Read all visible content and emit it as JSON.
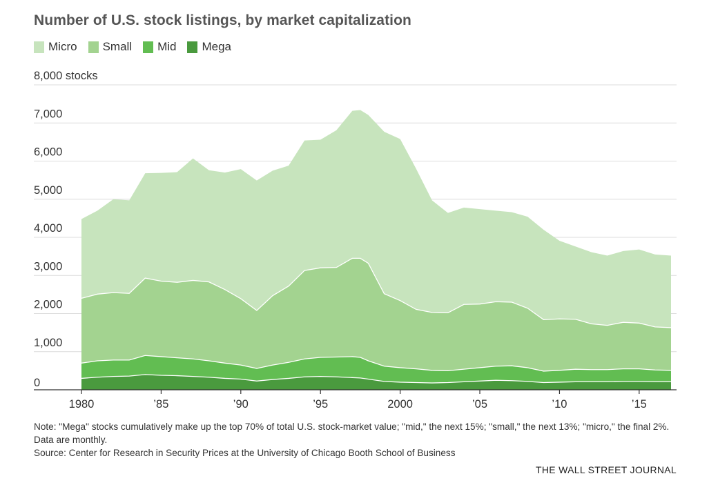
{
  "title": "Number of U.S. stock listings, by market capitalization",
  "note": "Note: \"Mega\" stocks cumulatively make up the top 70% of total U.S. stock-market value; \"mid,\" the next 15%; \"small,\" the next 13%; \"micro,\" the final 2%. Data are monthly.",
  "source": "Source: Center for Research in Security Prices at the University of Chicago Booth School of Business",
  "publisher": "THE WALL STREET JOURNAL",
  "chart_data": {
    "type": "area",
    "stacked": true,
    "title": "Number of U.S. stock listings, by market capitalization",
    "ylabel": "",
    "y_unit_label": "stocks",
    "ylim": [
      0,
      8000
    ],
    "xlim": [
      1980,
      2017
    ],
    "y_ticks": [
      0,
      1000,
      2000,
      3000,
      4000,
      5000,
      6000,
      7000,
      8000
    ],
    "y_tick_labels": [
      "0",
      "1,000",
      "2,000",
      "3,000",
      "4,000",
      "5,000",
      "6,000",
      "7,000",
      "8,000 stocks"
    ],
    "x_ticks": [
      1980,
      1985,
      1990,
      1995,
      2000,
      2005,
      2010,
      2015
    ],
    "x_tick_labels": [
      "1980",
      "’85",
      "’90",
      "’95",
      "2000",
      "’05",
      "’10",
      "’15"
    ],
    "grid": true,
    "legend_position": "top-left",
    "x": [
      1980,
      1981,
      1982,
      1983,
      1984,
      1985,
      1986,
      1987,
      1988,
      1989,
      1990,
      1991,
      1992,
      1993,
      1994,
      1995,
      1996,
      1997,
      1997.5,
      1998,
      1999,
      2000,
      2001,
      2002,
      2003,
      2004,
      2005,
      2006,
      2007,
      2008,
      2009,
      2010,
      2011,
      2012,
      2013,
      2014,
      2015,
      2016,
      2017
    ],
    "series": [
      {
        "name": "Mega",
        "color": "#4a9a3e",
        "values": [
          300,
          330,
          350,
          360,
          400,
          380,
          370,
          350,
          330,
          300,
          280,
          230,
          270,
          300,
          340,
          350,
          340,
          320,
          310,
          280,
          220,
          200,
          190,
          180,
          190,
          210,
          230,
          250,
          240,
          220,
          190,
          200,
          210,
          210,
          210,
          220,
          220,
          210,
          210
        ]
      },
      {
        "name": "Mid",
        "color": "#62bd52",
        "values": [
          400,
          430,
          430,
          420,
          500,
          490,
          470,
          460,
          430,
          400,
          370,
          330,
          380,
          420,
          470,
          500,
          520,
          550,
          540,
          480,
          400,
          380,
          360,
          330,
          310,
          330,
          350,
          370,
          390,
          360,
          300,
          310,
          330,
          320,
          320,
          330,
          330,
          310,
          300
        ]
      },
      {
        "name": "Small",
        "color": "#a3d390",
        "values": [
          1700,
          1750,
          1770,
          1750,
          2030,
          1980,
          1980,
          2060,
          2070,
          1930,
          1740,
          1520,
          1820,
          2000,
          2320,
          2350,
          2350,
          2580,
          2600,
          2560,
          1900,
          1760,
          1560,
          1520,
          1520,
          1700,
          1670,
          1690,
          1670,
          1560,
          1350,
          1350,
          1310,
          1200,
          1160,
          1220,
          1200,
          1130,
          1120
        ]
      },
      {
        "name": "Micro",
        "color": "#c7e4bd",
        "values": [
          2080,
          2190,
          2450,
          2440,
          2750,
          2840,
          2890,
          3200,
          2930,
          3070,
          3400,
          3410,
          3280,
          3160,
          3410,
          3360,
          3600,
          3870,
          3890,
          3890,
          4250,
          4240,
          3690,
          2940,
          2620,
          2540,
          2490,
          2390,
          2360,
          2400,
          2360,
          2050,
          1910,
          1880,
          1830,
          1870,
          1930,
          1900,
          1890
        ]
      }
    ]
  },
  "legend": [
    {
      "label": "Micro",
      "color": "#c7e4bd"
    },
    {
      "label": "Small",
      "color": "#a3d390"
    },
    {
      "label": "Mid",
      "color": "#62bd52"
    },
    {
      "label": "Mega",
      "color": "#4a9a3e"
    }
  ]
}
